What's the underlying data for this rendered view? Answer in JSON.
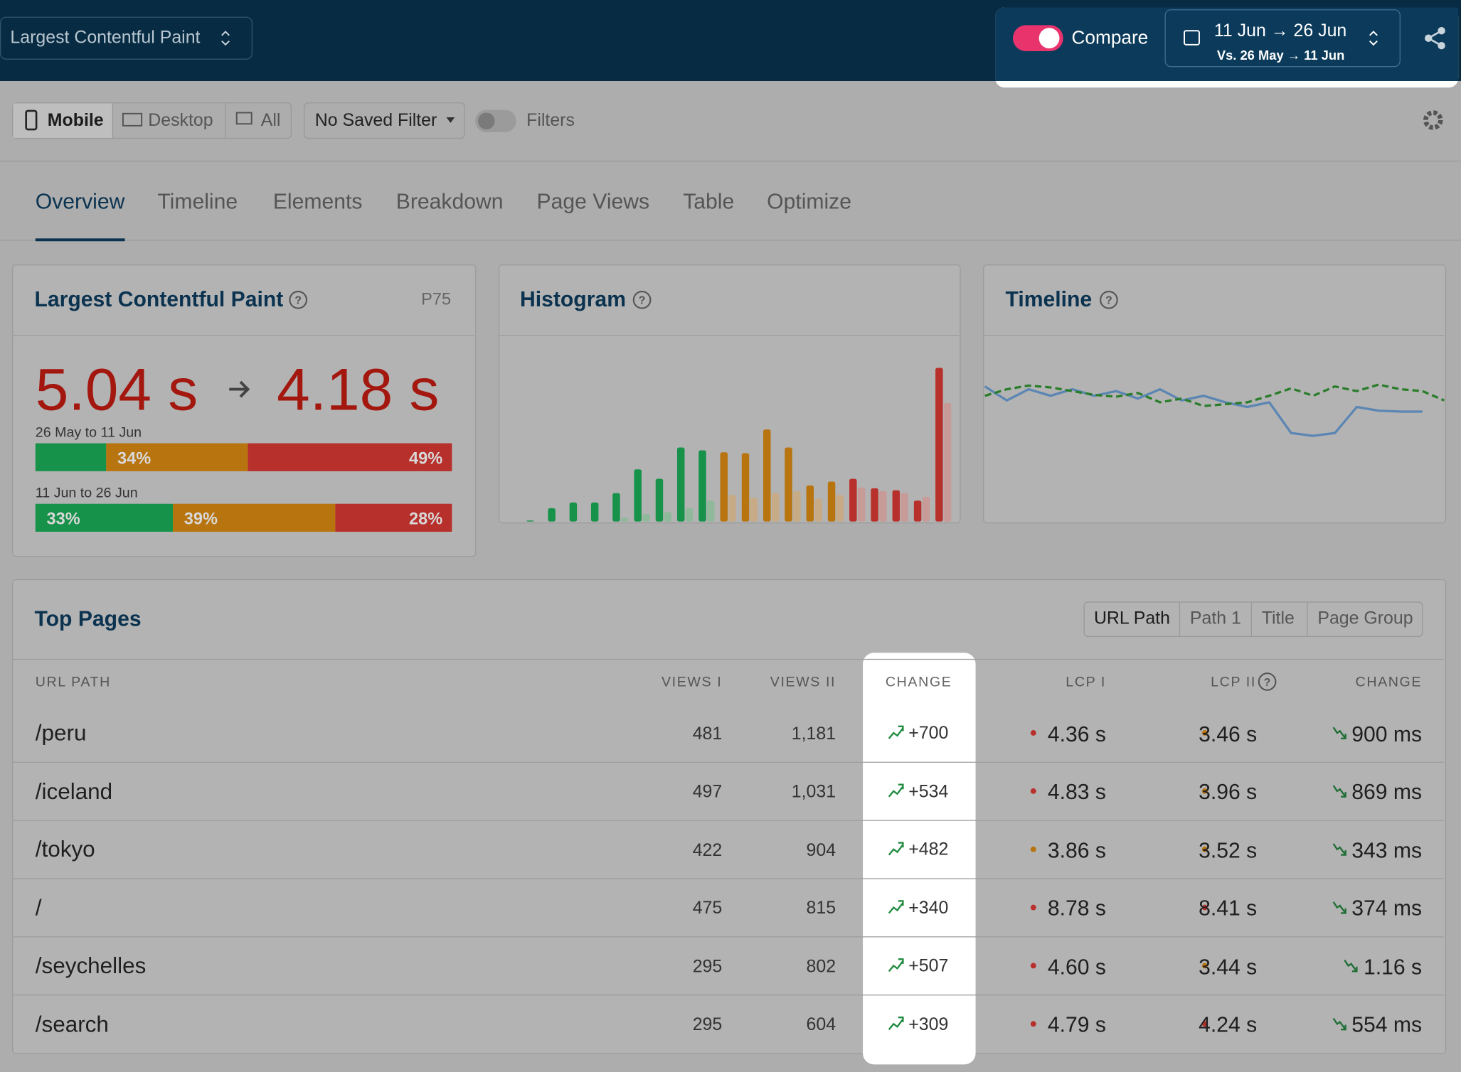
{
  "header": {
    "metric_select": "Largest Contentful Paint",
    "compare_label": "Compare",
    "compare_on": true,
    "date_range": "11 Jun → 26 Jun",
    "compare_range": "Vs.  26 May → 11 Jun"
  },
  "toolbar": {
    "devices": [
      "Mobile",
      "Desktop",
      "All"
    ],
    "active_device": 0,
    "filter": "No Saved Filter",
    "filters_label": "Filters"
  },
  "tabs": {
    "items": [
      "Overview",
      "Timeline",
      "Elements",
      "Breakdown",
      "Page Views",
      "Table",
      "Optimize"
    ],
    "active": 0
  },
  "lcp_card": {
    "title": "Largest Contentful Paint",
    "stat": "P75",
    "before": "5.04 s",
    "after": "4.18 s",
    "segment_colors": [
      "#17924a",
      "#b8740e",
      "#b8302b"
    ],
    "periods": [
      {
        "label": "26 May to 11 Jun",
        "values": [
          17,
          34,
          49
        ],
        "labels": [
          null,
          "34%",
          "49%"
        ]
      },
      {
        "label": "11 Jun to 26 Jun",
        "values": [
          33,
          39,
          28
        ],
        "labels": [
          "33%",
          "39%",
          "28%"
        ]
      }
    ]
  },
  "histogram": {
    "title": "Histogram",
    "current": [
      1,
      14,
      20,
      20,
      30,
      55,
      45,
      78,
      75,
      73,
      72,
      97,
      78,
      38,
      42,
      45,
      35,
      33,
      22,
      162
    ],
    "previous": [
      0,
      0,
      0,
      0,
      4,
      8,
      10,
      14,
      22,
      28,
      25,
      30,
      32,
      24,
      28,
      36,
      32,
      30,
      26,
      125
    ],
    "bin_colors": [
      "#17924a",
      "#17924a",
      "#17924a",
      "#17924a",
      "#17924a",
      "#17924a",
      "#17924a",
      "#17924a",
      "#17924a",
      "#b8740e",
      "#b8740e",
      "#b8740e",
      "#b8740e",
      "#b8740e",
      "#b8740e",
      "#b8302b",
      "#b8302b",
      "#b8302b",
      "#b8302b",
      "#b8302b"
    ],
    "previous_colors": [
      "#8fb99a",
      "#8fb99a",
      "#8fb99a",
      "#8fb99a",
      "#8fb99a",
      "#8fb99a",
      "#8fb99a",
      "#8fb99a",
      "#8fb99a",
      "#c6ab86",
      "#c6ab86",
      "#c6ab86",
      "#c6ab86",
      "#c6ab86",
      "#c6ab86",
      "#c79b98",
      "#c79b98",
      "#c79b98",
      "#c79b98",
      "#c79b98"
    ]
  },
  "timeline": {
    "title": "Timeline",
    "ylim": [
      0,
      100
    ],
    "series": [
      {
        "color": "#5b86b3",
        "dashed": false,
        "values": [
          72.5,
          65,
          71,
          67.5,
          71,
          67.5,
          70,
          66,
          71,
          65,
          67.5,
          64,
          61.5,
          64,
          47.5,
          46,
          47.5,
          61.5,
          59.5,
          59,
          59,
          null
        ]
      },
      {
        "color": "#2a7d2a",
        "dashed": true,
        "values": [
          67.5,
          71,
          73,
          72,
          70,
          68,
          67,
          69,
          64,
          66,
          62,
          63,
          64,
          67.5,
          71.5,
          67.5,
          72.5,
          70,
          73.5,
          71,
          70,
          65
        ]
      }
    ]
  },
  "top_pages": {
    "title": "Top Pages",
    "groupings": [
      "URL Path",
      "Path 1",
      "Title",
      "Page Group"
    ],
    "active_grouping": 0,
    "columns": [
      "URL PATH",
      "VIEWS I",
      "VIEWS II",
      "CHANGE",
      "LCP I",
      "LCP II",
      "CHANGE"
    ],
    "rows": [
      [
        "/peru",
        "481",
        "1,181",
        "+700",
        "4.36 s",
        "3.46 s",
        "900 ms"
      ],
      [
        "/iceland",
        "497",
        "1,031",
        "+534",
        "4.83 s",
        "3.96 s",
        "869 ms"
      ],
      [
        "/tokyo",
        "422",
        "904",
        "+482",
        "3.86 s",
        "3.52 s",
        "343 ms"
      ],
      [
        "/",
        "475",
        "815",
        "+340",
        "8.78 s",
        "8.41 s",
        "374 ms"
      ],
      [
        "/seychelles",
        "295",
        "802",
        "+507",
        "4.60 s",
        "3.44 s",
        "1.16 s"
      ],
      [
        "/search",
        "295",
        "604",
        "+309",
        "4.79 s",
        "4.24 s",
        "554 ms"
      ]
    ],
    "dot_colors": [
      [
        "#b8302b",
        "#b8740e"
      ],
      [
        "#b8302b",
        "#b8740e"
      ],
      [
        "#b8740e",
        "#b8740e"
      ],
      [
        "#b8302b",
        "#b8302b"
      ],
      [
        "#b8302b",
        "#b8740e"
      ],
      [
        "#b8302b",
        "#b8302b"
      ]
    ]
  }
}
